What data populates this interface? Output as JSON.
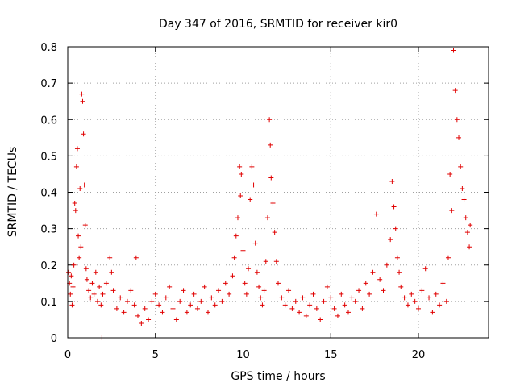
{
  "chart_data": {
    "type": "scatter",
    "title": "Day 347 of 2016, SRMTID for receiver kir0",
    "xlabel": "GPS time / hours",
    "ylabel": "SRMTID / TECUs",
    "xlim": [
      0,
      24
    ],
    "ylim": [
      0,
      0.8
    ],
    "x_ticks": [
      0,
      5,
      10,
      15,
      20
    ],
    "x_tick_labels": [
      "0",
      "5",
      "10",
      "15",
      "20"
    ],
    "y_ticks": [
      0,
      0.1,
      0.2,
      0.3,
      0.4,
      0.5,
      0.6,
      0.7,
      0.8
    ],
    "y_tick_labels": [
      "0",
      "0.1",
      "0.2",
      "0.3",
      "0.4",
      "0.5",
      "0.6",
      "0.7",
      "0.8"
    ],
    "grid": true,
    "marker": "+",
    "marker_color": "#e00000",
    "series": [
      {
        "name": "SRMTID",
        "points": [
          [
            0.05,
            0.18
          ],
          [
            0.1,
            0.15
          ],
          [
            0.15,
            0.12
          ],
          [
            0.2,
            0.17
          ],
          [
            0.25,
            0.09
          ],
          [
            0.3,
            0.14
          ],
          [
            0.35,
            0.2
          ],
          [
            0.4,
            0.37
          ],
          [
            0.45,
            0.35
          ],
          [
            0.5,
            0.47
          ],
          [
            0.55,
            0.52
          ],
          [
            0.6,
            0.28
          ],
          [
            0.65,
            0.22
          ],
          [
            0.7,
            0.41
          ],
          [
            0.75,
            0.25
          ],
          [
            0.8,
            0.67
          ],
          [
            0.85,
            0.65
          ],
          [
            0.9,
            0.56
          ],
          [
            0.95,
            0.42
          ],
          [
            1.0,
            0.31
          ],
          [
            1.05,
            0.19
          ],
          [
            1.1,
            0.16
          ],
          [
            1.2,
            0.13
          ],
          [
            1.3,
            0.11
          ],
          [
            1.4,
            0.15
          ],
          [
            1.5,
            0.12
          ],
          [
            1.6,
            0.18
          ],
          [
            1.7,
            0.1
          ],
          [
            1.8,
            0.14
          ],
          [
            1.9,
            0.09
          ],
          [
            1.95,
            0.0
          ],
          [
            2.0,
            0.12
          ],
          [
            2.2,
            0.15
          ],
          [
            2.4,
            0.22
          ],
          [
            2.5,
            0.18
          ],
          [
            2.6,
            0.13
          ],
          [
            2.8,
            0.08
          ],
          [
            3.0,
            0.11
          ],
          [
            3.2,
            0.07
          ],
          [
            3.4,
            0.1
          ],
          [
            3.6,
            0.13
          ],
          [
            3.8,
            0.09
          ],
          [
            3.9,
            0.22
          ],
          [
            4.0,
            0.06
          ],
          [
            4.2,
            0.04
          ],
          [
            4.4,
            0.08
          ],
          [
            4.6,
            0.05
          ],
          [
            4.8,
            0.1
          ],
          [
            5.0,
            0.12
          ],
          [
            5.2,
            0.09
          ],
          [
            5.4,
            0.07
          ],
          [
            5.6,
            0.11
          ],
          [
            5.8,
            0.14
          ],
          [
            6.0,
            0.08
          ],
          [
            6.2,
            0.05
          ],
          [
            6.4,
            0.1
          ],
          [
            6.6,
            0.13
          ],
          [
            6.8,
            0.07
          ],
          [
            7.0,
            0.09
          ],
          [
            7.2,
            0.12
          ],
          [
            7.4,
            0.08
          ],
          [
            7.6,
            0.1
          ],
          [
            7.8,
            0.14
          ],
          [
            8.0,
            0.07
          ],
          [
            8.2,
            0.11
          ],
          [
            8.4,
            0.09
          ],
          [
            8.6,
            0.13
          ],
          [
            8.8,
            0.1
          ],
          [
            9.0,
            0.15
          ],
          [
            9.2,
            0.12
          ],
          [
            9.4,
            0.17
          ],
          [
            9.5,
            0.22
          ],
          [
            9.6,
            0.28
          ],
          [
            9.7,
            0.33
          ],
          [
            9.8,
            0.47
          ],
          [
            9.85,
            0.39
          ],
          [
            9.9,
            0.45
          ],
          [
            10.0,
            0.24
          ],
          [
            10.1,
            0.15
          ],
          [
            10.2,
            0.12
          ],
          [
            10.3,
            0.19
          ],
          [
            10.4,
            0.38
          ],
          [
            10.5,
            0.47
          ],
          [
            10.6,
            0.42
          ],
          [
            10.7,
            0.26
          ],
          [
            10.8,
            0.18
          ],
          [
            10.9,
            0.14
          ],
          [
            11.0,
            0.11
          ],
          [
            11.1,
            0.09
          ],
          [
            11.2,
            0.13
          ],
          [
            11.3,
            0.21
          ],
          [
            11.4,
            0.33
          ],
          [
            11.5,
            0.6
          ],
          [
            11.55,
            0.53
          ],
          [
            11.6,
            0.44
          ],
          [
            11.7,
            0.37
          ],
          [
            11.8,
            0.29
          ],
          [
            11.9,
            0.21
          ],
          [
            12.0,
            0.15
          ],
          [
            12.2,
            0.11
          ],
          [
            12.4,
            0.09
          ],
          [
            12.6,
            0.13
          ],
          [
            12.8,
            0.08
          ],
          [
            13.0,
            0.1
          ],
          [
            13.2,
            0.07
          ],
          [
            13.4,
            0.11
          ],
          [
            13.6,
            0.06
          ],
          [
            13.8,
            0.09
          ],
          [
            14.0,
            0.12
          ],
          [
            14.2,
            0.08
          ],
          [
            14.4,
            0.05
          ],
          [
            14.6,
            0.1
          ],
          [
            14.8,
            0.14
          ],
          [
            15.0,
            0.11
          ],
          [
            15.2,
            0.08
          ],
          [
            15.4,
            0.06
          ],
          [
            15.6,
            0.12
          ],
          [
            15.8,
            0.09
          ],
          [
            16.0,
            0.07
          ],
          [
            16.2,
            0.11
          ],
          [
            16.4,
            0.1
          ],
          [
            16.6,
            0.13
          ],
          [
            16.8,
            0.08
          ],
          [
            17.0,
            0.15
          ],
          [
            17.2,
            0.12
          ],
          [
            17.4,
            0.18
          ],
          [
            17.6,
            0.34
          ],
          [
            17.8,
            0.16
          ],
          [
            18.0,
            0.13
          ],
          [
            18.2,
            0.2
          ],
          [
            18.4,
            0.27
          ],
          [
            18.5,
            0.43
          ],
          [
            18.6,
            0.36
          ],
          [
            18.7,
            0.3
          ],
          [
            18.8,
            0.22
          ],
          [
            18.9,
            0.18
          ],
          [
            19.0,
            0.14
          ],
          [
            19.2,
            0.11
          ],
          [
            19.4,
            0.09
          ],
          [
            19.6,
            0.12
          ],
          [
            19.8,
            0.1
          ],
          [
            20.0,
            0.08
          ],
          [
            20.2,
            0.13
          ],
          [
            20.4,
            0.19
          ],
          [
            20.6,
            0.11
          ],
          [
            20.8,
            0.07
          ],
          [
            21.0,
            0.12
          ],
          [
            21.2,
            0.09
          ],
          [
            21.4,
            0.15
          ],
          [
            21.6,
            0.1
          ],
          [
            21.7,
            0.22
          ],
          [
            21.8,
            0.45
          ],
          [
            21.9,
            0.35
          ],
          [
            22.0,
            0.79
          ],
          [
            22.1,
            0.68
          ],
          [
            22.2,
            0.6
          ],
          [
            22.3,
            0.55
          ],
          [
            22.4,
            0.47
          ],
          [
            22.5,
            0.41
          ],
          [
            22.6,
            0.38
          ],
          [
            22.7,
            0.33
          ],
          [
            22.8,
            0.29
          ],
          [
            22.9,
            0.25
          ],
          [
            22.95,
            0.31
          ]
        ]
      }
    ]
  }
}
